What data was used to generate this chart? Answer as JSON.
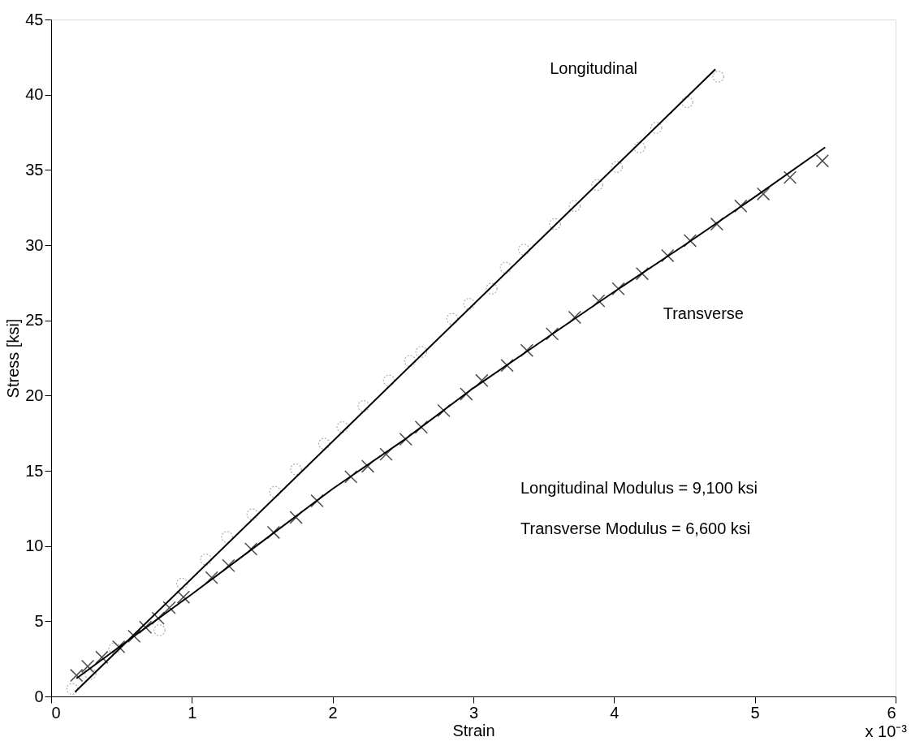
{
  "chart_data": {
    "type": "scatter",
    "xlabel": "Strain",
    "ylabel": "Stress [ksi]",
    "xlim": [
      0,
      6
    ],
    "xticks": [
      0,
      1,
      2,
      3,
      4,
      5,
      6
    ],
    "ylim": [
      0,
      45
    ],
    "yticks": [
      0,
      5,
      10,
      15,
      20,
      25,
      30,
      35,
      40,
      45
    ],
    "grid": false,
    "series": [
      {
        "marker": "circle",
        "color": "#8c8c8c",
        "x": [
          0.15,
          0.28,
          0.45,
          0.77,
          0.93,
          1.1,
          1.25,
          1.43,
          1.59,
          1.74,
          1.94,
          2.07,
          2.22,
          2.4,
          2.55,
          2.63,
          2.85,
          2.97,
          3.13,
          3.23,
          3.36,
          3.58,
          3.72,
          3.88,
          4.02,
          4.18,
          4.3,
          4.52,
          4.74
        ],
        "values": [
          0.5,
          1.5,
          3.2,
          4.4,
          7.5,
          9.1,
          10.6,
          12.1,
          13.6,
          15.1,
          16.8,
          17.9,
          19.3,
          21.0,
          22.3,
          22.9,
          25.1,
          26.1,
          27.1,
          28.5,
          29.7,
          31.4,
          32.6,
          34.0,
          35.2,
          36.5,
          37.8,
          39.5,
          41.2
        ]
      },
      {
        "type": "line",
        "name": "Longitudinal",
        "color": "#000000",
        "x": [
          0.17,
          4.72
        ],
        "values": [
          0.3,
          41.7
        ]
      },
      {
        "marker": "cross",
        "color": "#000000",
        "x": [
          0.18,
          0.26,
          0.36,
          0.48,
          0.59,
          0.67,
          0.76,
          0.84,
          0.94,
          1.14,
          1.26,
          1.42,
          1.58,
          1.74,
          1.89,
          2.13,
          2.25,
          2.38,
          2.52,
          2.63,
          2.79,
          2.95,
          3.06,
          3.24,
          3.38,
          3.56,
          3.72,
          3.89,
          4.03,
          4.2,
          4.38,
          4.54,
          4.73,
          4.9,
          5.06,
          5.25,
          5.48
        ],
        "values": [
          1.4,
          2.0,
          2.6,
          3.3,
          4.0,
          4.6,
          5.2,
          5.9,
          6.6,
          7.9,
          8.7,
          9.8,
          10.9,
          11.9,
          13.0,
          14.6,
          15.3,
          16.1,
          17.1,
          17.9,
          19.0,
          20.1,
          21.0,
          22.0,
          23.0,
          24.1,
          25.2,
          26.3,
          27.1,
          28.1,
          29.3,
          30.3,
          31.4,
          32.6,
          33.4,
          34.5,
          35.6
        ]
      },
      {
        "type": "line",
        "name": "Transverse",
        "color": "#000000",
        "x": [
          0.18,
          0.5,
          1.0,
          1.5,
          2.0,
          2.5,
          3.0,
          3.5,
          4.0,
          4.5,
          5.0,
          5.5
        ],
        "values": [
          1.2,
          3.4,
          6.8,
          10.3,
          13.8,
          17.0,
          20.5,
          23.7,
          26.9,
          30.0,
          33.2,
          36.5
        ]
      }
    ],
    "annotations": [
      "Longitudinal Modulus = 9,100 ksi",
      "Transverse Modulus = 6,600 ksi",
      "x 10⁻³"
    ]
  }
}
